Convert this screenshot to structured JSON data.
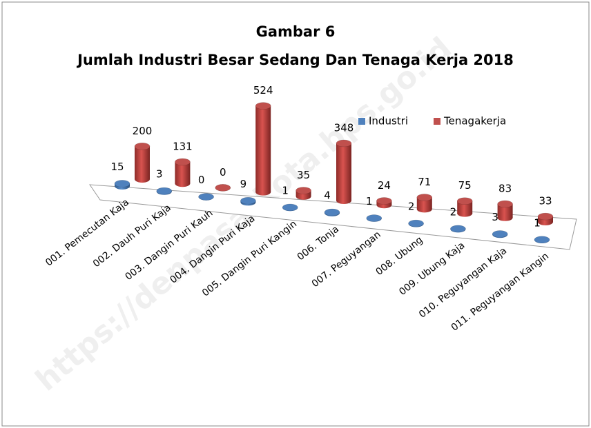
{
  "chart_data": {
    "type": "bar3d",
    "title": "Gambar 6",
    "subtitle": "Jumlah Industri Besar Sedang Dan Tenaga Kerja 2018",
    "watermark": "https://denpasarkota.bps.go.id",
    "categories": [
      "001. Pemecutan Kaja",
      "002. Dauh Puri Kaja",
      "003. Dangin Puri Kauh",
      "004. Dangin Puri Kaja",
      "005. Dangin Puri Kangin",
      "006. Tonja",
      "007. Peguyangan",
      "008. Ubung",
      "009. Ubung Kaja",
      "010. Peguyangan Kaja",
      "011. Peguyangan Kangin"
    ],
    "series": [
      {
        "name": "Industri",
        "color": "#4f81bd",
        "values": [
          15,
          3,
          0,
          9,
          1,
          4,
          1,
          2,
          2,
          3,
          1
        ]
      },
      {
        "name": "Tenagakerja",
        "color": "#c0504d",
        "values": [
          200,
          131,
          0,
          524,
          35,
          348,
          24,
          71,
          75,
          83,
          33
        ]
      }
    ],
    "legend": "top-right"
  }
}
